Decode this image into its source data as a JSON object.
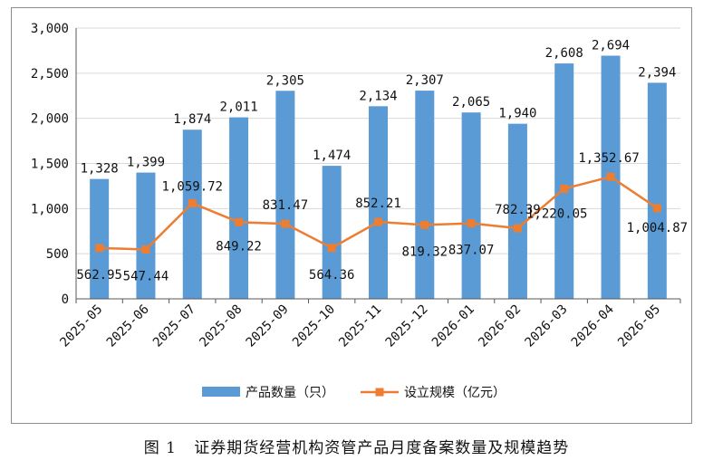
{
  "caption": {
    "figure_no": "图 1",
    "title": "证券期货经营机构资管产品月度备案数量及规模趋势"
  },
  "colors": {
    "bar": "#5b9bd5",
    "line": "#ed7d31",
    "grid": "#d9d9d9",
    "axis": "#595959"
  },
  "chart_data": {
    "type": "bar",
    "categories": [
      "2025-05",
      "2025-06",
      "2025-07",
      "2025-08",
      "2025-09",
      "2025-10",
      "2025-11",
      "2025-12",
      "2026-01",
      "2026-02",
      "2026-03",
      "2026-04",
      "2026-05"
    ],
    "series": [
      {
        "name": "产品数量（只）",
        "kind": "bar",
        "values": [
          1328,
          1399,
          1874,
          2011,
          2305,
          1474,
          2134,
          2307,
          2065,
          1940,
          2608,
          2694,
          2394
        ],
        "labels": [
          "1,328",
          "1,399",
          "1,874",
          "2,011",
          "2,305",
          "1,474",
          "2,134",
          "2,307",
          "2,065",
          "1,940",
          "2,608",
          "2,694",
          "2,394"
        ]
      },
      {
        "name": "设立规模（亿元）",
        "kind": "line",
        "values": [
          562.95,
          547.44,
          1059.72,
          849.22,
          831.47,
          564.36,
          852.21,
          819.32,
          837.07,
          782.39,
          1220.05,
          1352.67,
          1004.87
        ],
        "labels": [
          "562.95",
          "547.44",
          "1,059.72",
          "849.22",
          "831.47",
          "564.36",
          "852.21",
          "819.32",
          "837.07",
          "782.39",
          "1,220.05",
          "1,352.67",
          "1,004.87"
        ]
      }
    ],
    "ylim": [
      0,
      3000
    ],
    "yticks": [
      0,
      500,
      1000,
      1500,
      2000,
      2500,
      3000
    ],
    "ytick_labels": [
      "0",
      "500",
      "1,000",
      "1,500",
      "2,000",
      "2,500",
      "3,000"
    ],
    "grid": true,
    "legend_position": "bottom"
  }
}
